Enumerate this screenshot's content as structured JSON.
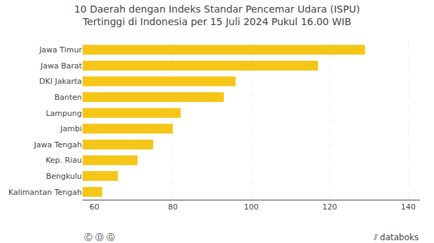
{
  "chart_data": {
    "type": "bar",
    "orientation": "horizontal",
    "title": "10 Daerah dengan Indeks Standar Pencemar Udara (ISPU)\nTertinggi di Indonesia per 15 Juli 2024 Pukul 16.00 WIB",
    "categories": [
      "Kalimantan Tengah",
      "Bengkulu",
      "Kep. Riau",
      "Jawa Tengah",
      "Jambi",
      "Lampung",
      "Banten",
      "DKI Jakarta",
      "Jawa Barat",
      "Jawa Timur"
    ],
    "values": [
      62,
      66,
      71,
      75,
      80,
      82,
      93,
      96,
      117,
      129
    ],
    "color": "#F5C518",
    "xlim": [
      57,
      143
    ],
    "xticks": [
      60,
      80,
      100,
      120,
      140
    ],
    "grid": true,
    "annotations": [
      "Ⓒ Ⓓ Ⓖ",
      "⫽ databoks"
    ]
  }
}
